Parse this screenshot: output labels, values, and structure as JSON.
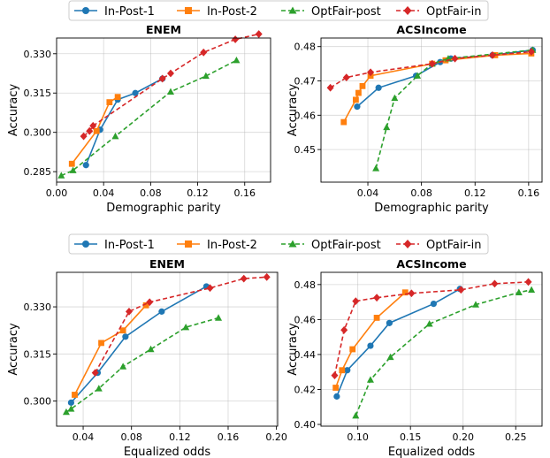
{
  "chart_data": [
    {
      "type": "line",
      "title": "ENEM",
      "xlabel": "Demographic parity",
      "ylabel": "Accuracy",
      "xlim": [
        0.0,
        0.182
      ],
      "ylim": [
        0.281,
        0.336
      ],
      "xticks": [
        0.0,
        0.04,
        0.08,
        0.12,
        0.16
      ],
      "xtick_labels": [
        "0.00",
        "0.04",
        "0.08",
        "0.12",
        "0.16"
      ],
      "yticks": [
        0.285,
        0.3,
        0.315,
        0.33
      ],
      "ytick_labels": [
        "0.285",
        "0.300",
        "0.315",
        "0.330"
      ],
      "series": [
        {
          "name": "In-Post-1",
          "marker": "circle",
          "color": "#1f77b4",
          "dashed": false,
          "x": [
            0.025,
            0.037,
            0.052,
            0.067,
            0.09
          ],
          "y": [
            0.2875,
            0.301,
            0.3125,
            0.315,
            0.3205
          ]
        },
        {
          "name": "In-Post-2",
          "marker": "square",
          "color": "#ff7f0e",
          "dashed": false,
          "x": [
            0.013,
            0.034,
            0.045,
            0.052
          ],
          "y": [
            0.288,
            0.3005,
            0.3115,
            0.3135
          ]
        },
        {
          "name": "OptFair-post",
          "marker": "triangle",
          "color": "#2ca02c",
          "dashed": true,
          "x": [
            0.004,
            0.014,
            0.05,
            0.097,
            0.127,
            0.153
          ],
          "y": [
            0.2835,
            0.2855,
            0.2985,
            0.3155,
            0.3215,
            0.3275
          ]
        },
        {
          "name": "OptFair-in",
          "marker": "diamond",
          "color": "#d62728",
          "dashed": true,
          "x": [
            0.023,
            0.028,
            0.031,
            0.09,
            0.097,
            0.125,
            0.152,
            0.172
          ],
          "y": [
            0.2985,
            0.3005,
            0.3025,
            0.3205,
            0.3225,
            0.3305,
            0.3355,
            0.3375
          ]
        }
      ]
    },
    {
      "type": "line",
      "title": "ACSIncome",
      "xlabel": "Demographic parity",
      "ylabel": "",
      "xlim": [
        0.005,
        0.17
      ],
      "ylim": [
        0.4405,
        0.4825
      ],
      "xticks": [
        0.04,
        0.08,
        0.12,
        0.16
      ],
      "xtick_labels": [
        "0.04",
        "0.08",
        "0.12",
        "0.16"
      ],
      "yticks": [
        0.45,
        0.46,
        0.47,
        0.48
      ],
      "ytick_labels": [
        "0.45",
        "0.46",
        "0.47",
        "0.48"
      ],
      "series": [
        {
          "name": "In-Post-1",
          "marker": "circle",
          "color": "#1f77b4",
          "dashed": false,
          "x": [
            0.032,
            0.048,
            0.076,
            0.094,
            0.102,
            0.133,
            0.163
          ],
          "y": [
            0.4625,
            0.468,
            0.4715,
            0.4755,
            0.4765,
            0.4775,
            0.479
          ]
        },
        {
          "name": "In-Post-2",
          "marker": "square",
          "color": "#ff7f0e",
          "dashed": false,
          "x": [
            0.022,
            0.031,
            0.033,
            0.036,
            0.042,
            0.088,
            0.098,
            0.135,
            0.162
          ],
          "y": [
            0.458,
            0.4645,
            0.4665,
            0.4685,
            0.4715,
            0.475,
            0.476,
            0.4775,
            0.478
          ]
        },
        {
          "name": "OptFair-post",
          "marker": "triangle",
          "color": "#2ca02c",
          "dashed": true,
          "x": [
            0.046,
            0.054,
            0.06,
            0.077,
            0.088,
            0.1,
            0.163
          ],
          "y": [
            0.4445,
            0.4565,
            0.465,
            0.4715,
            0.475,
            0.4765,
            0.479
          ]
        },
        {
          "name": "OptFair-in",
          "marker": "diamond",
          "color": "#d62728",
          "dashed": true,
          "x": [
            0.012,
            0.024,
            0.042,
            0.088,
            0.105,
            0.133,
            0.162
          ],
          "y": [
            0.468,
            0.471,
            0.4725,
            0.475,
            0.4765,
            0.4775,
            0.4785
          ]
        }
      ]
    },
    {
      "type": "line",
      "title": "ENEM",
      "xlabel": "Equalized odds",
      "ylabel": "Accuracy",
      "xlim": [
        0.018,
        0.201
      ],
      "ylim": [
        0.292,
        0.341
      ],
      "xticks": [
        0.04,
        0.08,
        0.12,
        0.16,
        0.2
      ],
      "xtick_labels": [
        "0.04",
        "0.08",
        "0.12",
        "0.16",
        "0.20"
      ],
      "yticks": [
        0.3,
        0.315,
        0.33
      ],
      "ytick_labels": [
        "0.300",
        "0.315",
        "0.330"
      ],
      "series": [
        {
          "name": "In-Post-1",
          "marker": "circle",
          "color": "#1f77b4",
          "dashed": false,
          "x": [
            0.03,
            0.052,
            0.075,
            0.105,
            0.142
          ],
          "y": [
            0.2995,
            0.309,
            0.3205,
            0.3285,
            0.3365
          ]
        },
        {
          "name": "In-Post-2",
          "marker": "square",
          "color": "#ff7f0e",
          "dashed": false,
          "x": [
            0.033,
            0.055,
            0.073,
            0.092
          ],
          "y": [
            0.302,
            0.3185,
            0.3225,
            0.3305
          ]
        },
        {
          "name": "OptFair-post",
          "marker": "triangle",
          "color": "#2ca02c",
          "dashed": true,
          "x": [
            0.026,
            0.03,
            0.053,
            0.073,
            0.096,
            0.125,
            0.152
          ],
          "y": [
            0.2965,
            0.2975,
            0.304,
            0.311,
            0.3165,
            0.3235,
            0.3265
          ]
        },
        {
          "name": "OptFair-in",
          "marker": "diamond",
          "color": "#d62728",
          "dashed": true,
          "x": [
            0.05,
            0.078,
            0.095,
            0.145,
            0.173,
            0.192
          ],
          "y": [
            0.309,
            0.3285,
            0.3315,
            0.336,
            0.339,
            0.3395
          ]
        }
      ]
    },
    {
      "type": "line",
      "title": "ACSIncome",
      "xlabel": "Equalized odds",
      "ylabel": "",
      "xlim": [
        0.065,
        0.275
      ],
      "ylim": [
        0.399,
        0.487
      ],
      "xticks": [
        0.1,
        0.15,
        0.2,
        0.25
      ],
      "xtick_labels": [
        "0.10",
        "0.15",
        "0.20",
        "0.25"
      ],
      "yticks": [
        0.4,
        0.42,
        0.44,
        0.46,
        0.48
      ],
      "ytick_labels": [
        "0.40",
        "0.42",
        "0.44",
        "0.46",
        "0.48"
      ],
      "series": [
        {
          "name": "In-Post-1",
          "marker": "circle",
          "color": "#1f77b4",
          "dashed": false,
          "x": [
            0.08,
            0.09,
            0.112,
            0.13,
            0.172,
            0.197
          ],
          "y": [
            0.416,
            0.431,
            0.445,
            0.458,
            0.469,
            0.4775
          ]
        },
        {
          "name": "In-Post-2",
          "marker": "square",
          "color": "#ff7f0e",
          "dashed": false,
          "x": [
            0.079,
            0.085,
            0.095,
            0.118,
            0.145
          ],
          "y": [
            0.421,
            0.431,
            0.443,
            0.461,
            0.4755
          ]
        },
        {
          "name": "OptFair-post",
          "marker": "triangle",
          "color": "#2ca02c",
          "dashed": true,
          "x": [
            0.098,
            0.112,
            0.131,
            0.168,
            0.212,
            0.253,
            0.265
          ],
          "y": [
            0.405,
            0.4255,
            0.4385,
            0.4575,
            0.4685,
            0.4755,
            0.477
          ]
        },
        {
          "name": "OptFair-in",
          "marker": "diamond",
          "color": "#d62728",
          "dashed": true,
          "x": [
            0.078,
            0.087,
            0.098,
            0.118,
            0.151,
            0.198,
            0.23,
            0.262
          ],
          "y": [
            0.428,
            0.454,
            0.4705,
            0.4725,
            0.475,
            0.477,
            0.4805,
            0.4815
          ]
        }
      ]
    }
  ],
  "legends": [
    {
      "entries": [
        "In-Post-1",
        "In-Post-2",
        "OptFair-post",
        "OptFair-in"
      ],
      "placement": "top-center"
    },
    {
      "entries": [
        "In-Post-1",
        "In-Post-2",
        "OptFair-post",
        "OptFair-in"
      ],
      "placement": "middle-center"
    }
  ],
  "colors": {
    "In-Post-1": "#1f77b4",
    "In-Post-2": "#ff7f0e",
    "OptFair-post": "#2ca02c",
    "OptFair-in": "#d62728"
  }
}
